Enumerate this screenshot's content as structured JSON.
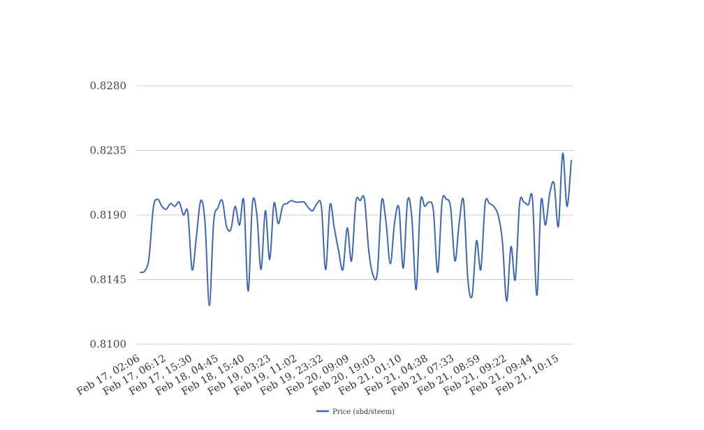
{
  "chart_data": {
    "type": "line",
    "title": "",
    "xlabel": "",
    "ylabel": "",
    "ylim": [
      0.81,
      0.828
    ],
    "yticks": [
      "0.8280",
      "0.8235",
      "0.8190",
      "0.8145",
      "0.8100"
    ],
    "grid": true,
    "legend_position": "bottom",
    "x_tick_labels": [
      "Feb 17, 02:06",
      "Feb 17, 06:12",
      "Feb 17, 15:30",
      "Feb 18, 04:45",
      "Feb 18, 15:40",
      "Feb 19, 03:23",
      "Feb 19, 11:02",
      "Feb 19, 23:32",
      "Feb 20, 09:09",
      "Feb 20, 19:03",
      "Feb 21, 01:10",
      "Feb 21, 04:38",
      "Feb 21, 07:33",
      "Feb 21, 08:59",
      "Feb 21, 09:22",
      "Feb 21, 09:44",
      "Feb 21, 10:15"
    ],
    "series": [
      {
        "name": "Price (sbd/steem)",
        "color": "#3d65b8",
        "values": [
          0.815,
          0.8151,
          0.816,
          0.8195,
          0.8201,
          0.8196,
          0.8194,
          0.8198,
          0.8196,
          0.8199,
          0.819,
          0.8192,
          0.8152,
          0.8175,
          0.82,
          0.8185,
          0.8127,
          0.8185,
          0.8195,
          0.82,
          0.8182,
          0.818,
          0.8196,
          0.8183,
          0.82,
          0.8137,
          0.8198,
          0.8191,
          0.8152,
          0.8193,
          0.8159,
          0.8198,
          0.8184,
          0.8196,
          0.8198,
          0.82,
          0.8199,
          0.8199,
          0.8199,
          0.8195,
          0.8193,
          0.8198,
          0.8196,
          0.8152,
          0.8197,
          0.8181,
          0.8165,
          0.8152,
          0.8181,
          0.8158,
          0.8199,
          0.82,
          0.8201,
          0.8165,
          0.8148,
          0.815,
          0.82,
          0.8185,
          0.8156,
          0.8185,
          0.8195,
          0.8153,
          0.82,
          0.8188,
          0.8138,
          0.8199,
          0.8196,
          0.8199,
          0.8193,
          0.815,
          0.8199,
          0.8201,
          0.8195,
          0.8158,
          0.8185,
          0.82,
          0.8145,
          0.8134,
          0.8172,
          0.8152,
          0.8198,
          0.8198,
          0.8196,
          0.819,
          0.8172,
          0.813,
          0.8168,
          0.8145,
          0.8198,
          0.8199,
          0.8197,
          0.8201,
          0.8134,
          0.82,
          0.8183,
          0.8205,
          0.8212,
          0.8182,
          0.8233,
          0.8196,
          0.8228
        ]
      }
    ]
  }
}
